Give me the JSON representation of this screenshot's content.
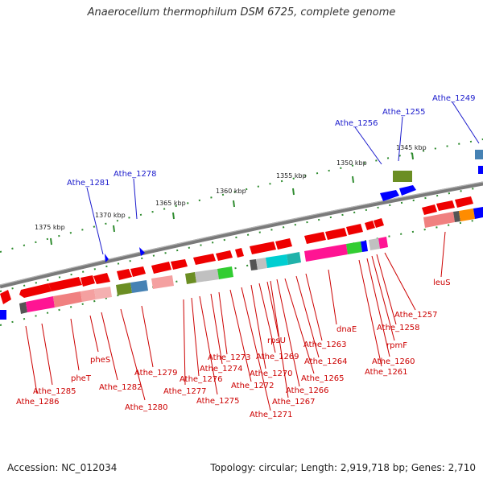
{
  "title": "Anaerocellum thermophilum DSM 6725, complete genome",
  "footer": {
    "accession": "Accession: NC_012034",
    "topology": "Topology: circular; Length: 2,919,718 bp; Genes: 2,710"
  },
  "ruler_ticks": [
    {
      "label": "1375 kbp"
    },
    {
      "label": "1370 kbp"
    },
    {
      "label": "1365 kbp"
    },
    {
      "label": "1360 kbp"
    },
    {
      "label": "1355 kbp"
    },
    {
      "label": "1350 kbp"
    },
    {
      "label": "1345 kbp"
    }
  ],
  "upper_labels": [
    {
      "text": "Athe_1281"
    },
    {
      "text": "Athe_1278"
    },
    {
      "text": "Athe_1256"
    },
    {
      "text": "Athe_1255"
    },
    {
      "text": "Athe_1249"
    }
  ],
  "lower_labels": [
    {
      "text": "Athe_1286"
    },
    {
      "text": "Athe_1285"
    },
    {
      "text": "pheT"
    },
    {
      "text": "pheS"
    },
    {
      "text": "Athe_1282"
    },
    {
      "text": "Athe_1280"
    },
    {
      "text": "Athe_1279"
    },
    {
      "text": "Athe_1277"
    },
    {
      "text": "Athe_1276"
    },
    {
      "text": "Athe_1275"
    },
    {
      "text": "Athe_1274"
    },
    {
      "text": "Athe_1273"
    },
    {
      "text": "Athe_1272"
    },
    {
      "text": "Athe_1271"
    },
    {
      "text": "Athe_1270"
    },
    {
      "text": "Athe_1269"
    },
    {
      "text": "rpsU"
    },
    {
      "text": "Athe_1267"
    },
    {
      "text": "Athe_1266"
    },
    {
      "text": "Athe_1265"
    },
    {
      "text": "Athe_1264"
    },
    {
      "text": "Athe_1263"
    },
    {
      "text": "dnaE"
    },
    {
      "text": "Athe_1261"
    },
    {
      "text": "Athe_1260"
    },
    {
      "text": "rpmF"
    },
    {
      "text": "Athe_1258"
    },
    {
      "text": "Athe_1257"
    },
    {
      "text": "leuS"
    }
  ],
  "colors": {
    "backbone": "#808080",
    "forward_gene": "#ff0000",
    "reverse_gene": "#0000ff",
    "ruler_dot": "#2e8b2e",
    "label_blue": "#1a1acc",
    "label_red": "#cc0000"
  }
}
